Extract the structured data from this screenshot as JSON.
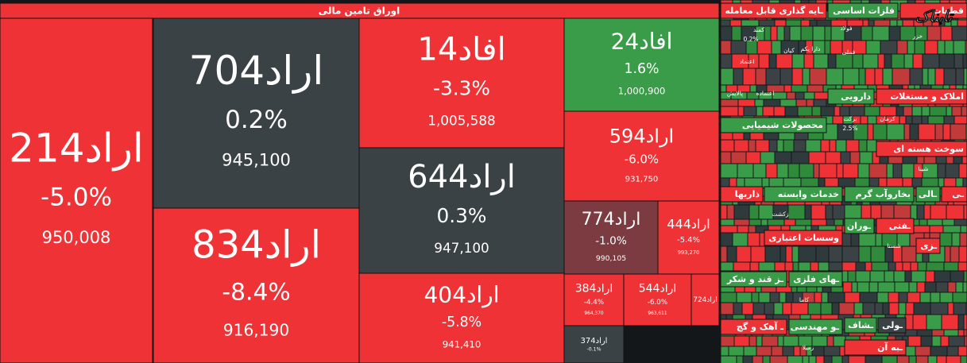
{
  "header": {
    "title": "اوراق تامین مالی"
  },
  "watermark": "تابناک",
  "tiles": [
    {
      "name": "اراد214",
      "change": "-5.0%",
      "volume": "950,008"
    },
    {
      "name": "اراد704",
      "change": "0.2%",
      "volume": "945,100"
    },
    {
      "name": "اراد834",
      "change": "-8.4%",
      "volume": "916,190"
    },
    {
      "name": "افاد14",
      "change": "-3.3%",
      "volume": "1,005,588"
    },
    {
      "name": "اراد644",
      "change": "0.3%",
      "volume": "947,100"
    },
    {
      "name": "اراد404",
      "change": "-5.8%",
      "volume": "941,410"
    },
    {
      "name": "افاد24",
      "change": "1.6%",
      "volume": "1,000,900"
    },
    {
      "name": "اراد594",
      "change": "-6.0%",
      "volume": "931,750"
    },
    {
      "name": "اراد774",
      "change": "-1.0%",
      "volume": "990,105"
    },
    {
      "name": "اراد444",
      "change": "-5.4%",
      "volume": "993,270"
    },
    {
      "name": "اراد384",
      "change": "-4.4%",
      "volume": "964,370"
    },
    {
      "name": "اراد544",
      "change": "-6.0%",
      "volume": "963,611"
    },
    {
      "name": "اراد724"
    },
    {
      "name": "اراد374",
      "change": "-0.1%"
    }
  ],
  "sectors": [
    {
      "title": "ـایه گذاری قابل معامله",
      "items": [
        "کمند",
        "0.2%",
        "دارا یکم",
        "کیان",
        "اعتماد",
        "اعتماده",
        "پالایش"
      ]
    },
    {
      "title": "فلزات اساسی",
      "items": [
        "فولاد",
        "فملی"
      ]
    },
    {
      "title": "قطعات",
      "items": [
        "خزر"
      ]
    },
    {
      "title": "دارویی",
      "items": [
        "برکت",
        "2.5%"
      ]
    },
    {
      "title": "املاک و مستغلات",
      "items": [
        "کرمان"
      ]
    },
    {
      "title": "محصولات شیمیایی",
      "items": []
    },
    {
      "title": "سوخت هسته ای",
      "items": [
        "شینا"
      ]
    },
    {
      "title": "ذاریها",
      "items": []
    },
    {
      "title": "خدمات وابسته",
      "items": [
        "زکشت"
      ]
    },
    {
      "title": "بخاروآب گرم",
      "items": []
    },
    {
      "title": "ـالی",
      "items": []
    },
    {
      "title": "ـی",
      "items": []
    },
    {
      "title": "وسسات اعتباری",
      "items": []
    },
    {
      "title": "ـوران",
      "items": []
    },
    {
      "title": "ـفتی",
      "items": [
        "شستا"
      ]
    },
    {
      "title": "ـزی",
      "items": []
    },
    {
      "title": "ـز قند و شکر",
      "items": []
    },
    {
      "title": "ـهای فلزی",
      "items": [
        "کاما"
      ]
    },
    {
      "title": "ـ آهک و گچ",
      "items": []
    },
    {
      "title": "ـو مهندسی",
      "items": [
        "زمیلا"
      ]
    },
    {
      "title": "ـشاف",
      "items": []
    },
    {
      "title": "ـولی",
      "items": []
    },
    {
      "title": "ـبه آن",
      "items": []
    }
  ]
}
